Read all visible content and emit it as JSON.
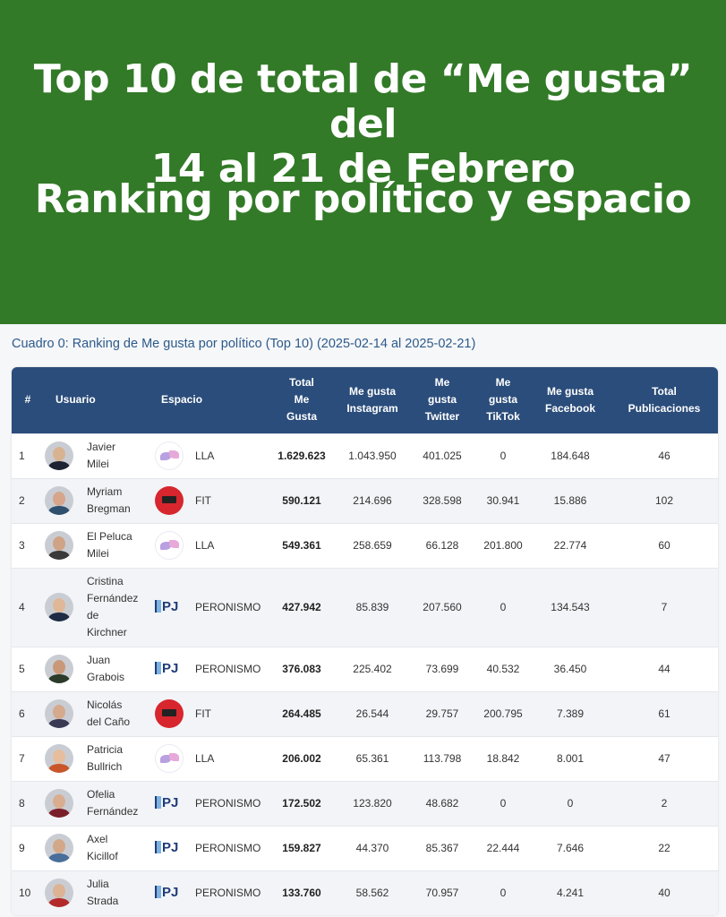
{
  "banner": {
    "title_line1": "Top 10 de total de “Me gusta” del",
    "title_line2": "14 al 21 de Febrero",
    "subtitle": "Ranking por político y espacio",
    "color": "#327a27"
  },
  "caption": "Cuadro 0: Ranking de Me gusta por político (Top 10) (2025-02-14 al 2025-02-21)",
  "table": {
    "header_color": "#2b4d7b",
    "columns": {
      "rank": "#",
      "user": "Usuario",
      "space": "Espacio",
      "total": [
        "Total",
        "Me",
        "Gusta"
      ],
      "instagram": [
        "Me gusta",
        "Instagram"
      ],
      "twitter": [
        "Me",
        "gusta",
        "Twitter"
      ],
      "tiktok": [
        "Me",
        "gusta",
        "TikTok"
      ],
      "facebook": [
        "Me gusta",
        "Facebook"
      ],
      "posts": [
        "Total",
        "Publicaciones"
      ]
    },
    "rows": [
      {
        "rank": "1",
        "name": [
          "Javier",
          "Milei"
        ],
        "space": "LLA",
        "logo": "lla-logo",
        "total": "1.629.623",
        "instagram": "1.043.950",
        "twitter": "401.025",
        "tiktok": "0",
        "facebook": "184.648",
        "posts": "46"
      },
      {
        "rank": "2",
        "name": [
          "Myriam",
          "Bregman"
        ],
        "space": "FIT",
        "logo": "fit-logo",
        "total": "590.121",
        "instagram": "214.696",
        "twitter": "328.598",
        "tiktok": "30.941",
        "facebook": "15.886",
        "posts": "102"
      },
      {
        "rank": "3",
        "name": [
          "El Peluca",
          "Milei"
        ],
        "space": "LLA",
        "logo": "lla-logo",
        "total": "549.361",
        "instagram": "258.659",
        "twitter": "66.128",
        "tiktok": "201.800",
        "facebook": "22.774",
        "posts": "60"
      },
      {
        "rank": "4",
        "name": [
          "Cristina",
          "Fernández",
          "de",
          "Kirchner"
        ],
        "space": "PERONISMO",
        "logo": "pj-logo",
        "total": "427.942",
        "instagram": "85.839",
        "twitter": "207.560",
        "tiktok": "0",
        "facebook": "134.543",
        "posts": "7"
      },
      {
        "rank": "5",
        "name": [
          "Juan",
          "Grabois"
        ],
        "space": "PERONISMO",
        "logo": "pj-logo",
        "total": "376.083",
        "instagram": "225.402",
        "twitter": "73.699",
        "tiktok": "40.532",
        "facebook": "36.450",
        "posts": "44"
      },
      {
        "rank": "6",
        "name": [
          "Nicolás",
          "del Caño"
        ],
        "space": "FIT",
        "logo": "fit-logo",
        "total": "264.485",
        "instagram": "26.544",
        "twitter": "29.757",
        "tiktok": "200.795",
        "facebook": "7.389",
        "posts": "61"
      },
      {
        "rank": "7",
        "name": [
          "Patricia",
          "Bullrich"
        ],
        "space": "LLA",
        "logo": "lla-logo",
        "total": "206.002",
        "instagram": "65.361",
        "twitter": "113.798",
        "tiktok": "18.842",
        "facebook": "8.001",
        "posts": "47"
      },
      {
        "rank": "8",
        "name": [
          "Ofelia",
          "Fernández"
        ],
        "space": "PERONISMO",
        "logo": "pj-logo",
        "total": "172.502",
        "instagram": "123.820",
        "twitter": "48.682",
        "tiktok": "0",
        "facebook": "0",
        "posts": "2"
      },
      {
        "rank": "9",
        "name": [
          "Axel",
          "Kicillof"
        ],
        "space": "PERONISMO",
        "logo": "pj-logo",
        "total": "159.827",
        "instagram": "44.370",
        "twitter": "85.367",
        "tiktok": "22.444",
        "facebook": "7.646",
        "posts": "22"
      },
      {
        "rank": "10",
        "name": [
          "Julia",
          "Strada"
        ],
        "space": "PERONISMO",
        "logo": "pj-logo",
        "total": "133.760",
        "instagram": "58.562",
        "twitter": "70.957",
        "tiktok": "0",
        "facebook": "4.241",
        "posts": "40"
      }
    ]
  }
}
